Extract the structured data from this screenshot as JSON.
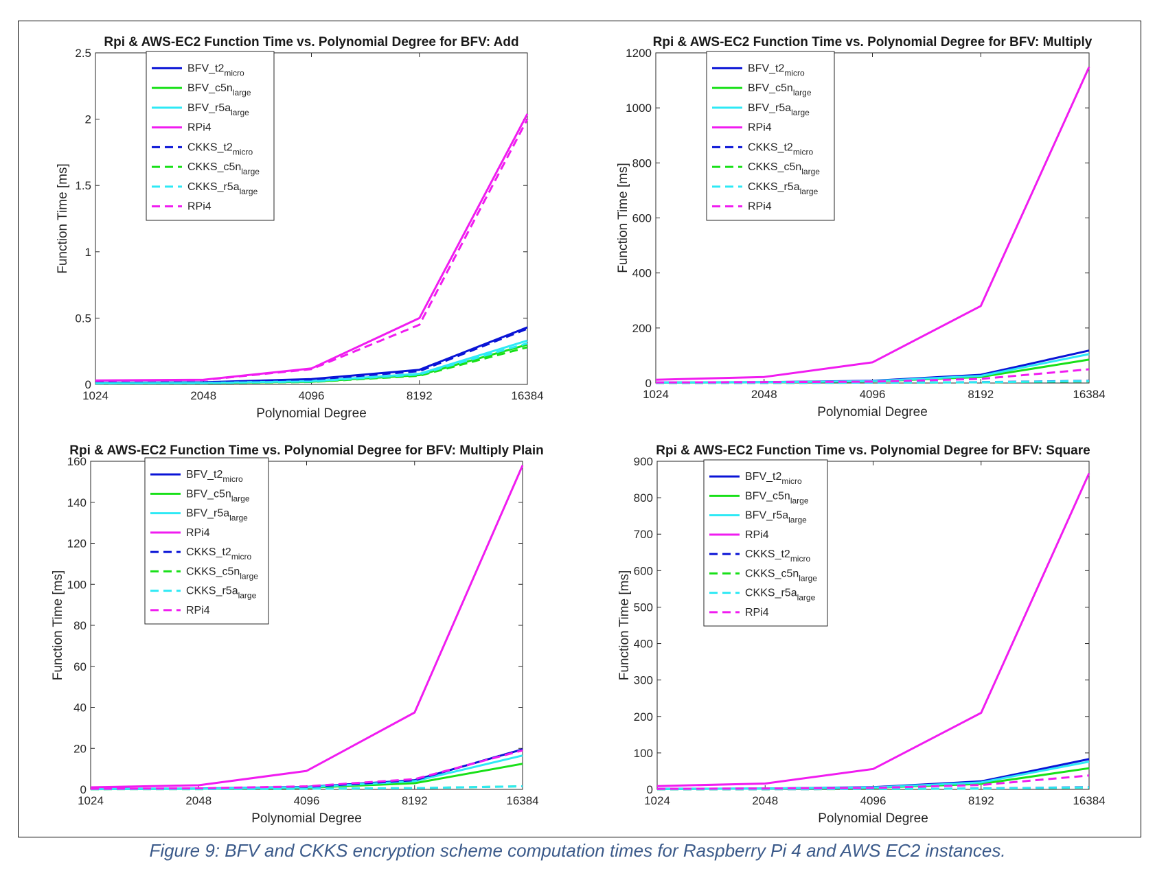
{
  "caption": "Figure 9: BFV and CKKS encryption scheme computation times for Raspberry Pi 4 and AWS EC2 instances.",
  "colors": {
    "t2_micro": "#0a14d6",
    "c5n_large": "#18e018",
    "r5a_large": "#2ee9f5",
    "rpi4": "#f01cf0"
  },
  "legend_entries": [
    {
      "prefix": "BFV_",
      "base": "t2",
      "sub": "micro",
      "color": "t2_micro",
      "dash": false
    },
    {
      "prefix": "BFV_",
      "base": "c5n",
      "sub": "large",
      "color": "c5n_large",
      "dash": false
    },
    {
      "prefix": "BFV_",
      "base": "r5a",
      "sub": "large",
      "color": "r5a_large",
      "dash": false
    },
    {
      "prefix": "",
      "base": "RPi4",
      "sub": "",
      "color": "rpi4",
      "dash": false
    },
    {
      "prefix": "CKKS_",
      "base": "t2",
      "sub": "micro",
      "color": "t2_micro",
      "dash": true
    },
    {
      "prefix": "CKKS_",
      "base": "c5n",
      "sub": "large",
      "color": "c5n_large",
      "dash": true
    },
    {
      "prefix": "CKKS_",
      "base": "r5a",
      "sub": "large",
      "color": "r5a_large",
      "dash": true
    },
    {
      "prefix": "",
      "base": "RPi4",
      "sub": "",
      "color": "rpi4",
      "dash": true
    }
  ],
  "chart_data": [
    {
      "type": "line",
      "title": "Rpi & AWS-EC2 Function Time vs. Polynomial Degree for BFV: Add",
      "xlabel": "Polynomial Degree",
      "ylabel": "Function Time [ms]",
      "categories": [
        "1024",
        "2048",
        "4096",
        "8192",
        "16384"
      ],
      "ylim": [
        0,
        2.5
      ],
      "yticks": [
        0,
        0.5,
        1,
        1.5,
        2,
        2.5
      ],
      "ytick_labels": [
        "0",
        "0.5",
        "1",
        "1.5",
        "2",
        "2.5"
      ],
      "legend": "top-left",
      "series": [
        {
          "values": [
            0.012,
            0.016,
            0.04,
            0.11,
            0.43
          ]
        },
        {
          "values": [
            0.008,
            0.01,
            0.02,
            0.07,
            0.3
          ]
        },
        {
          "values": [
            0.009,
            0.011,
            0.025,
            0.08,
            0.33
          ]
        },
        {
          "values": [
            0.03,
            0.035,
            0.12,
            0.5,
            2.04
          ]
        },
        {
          "values": [
            0.011,
            0.015,
            0.035,
            0.1,
            0.42
          ]
        },
        {
          "values": [
            0.007,
            0.009,
            0.018,
            0.065,
            0.28
          ]
        },
        {
          "values": [
            0.008,
            0.01,
            0.022,
            0.075,
            0.31
          ]
        },
        {
          "values": [
            0.028,
            0.033,
            0.115,
            0.45,
            2.0
          ]
        }
      ]
    },
    {
      "type": "line",
      "title": "Rpi & AWS-EC2 Function Time vs. Polynomial Degree for BFV: Multiply",
      "xlabel": "Polynomial Degree",
      "ylabel": "Function Time [ms]",
      "categories": [
        "1024",
        "2048",
        "4096",
        "8192",
        "16384"
      ],
      "ylim": [
        0,
        1200
      ],
      "yticks": [
        0,
        200,
        400,
        600,
        800,
        1000,
        1200
      ],
      "ytick_labels": [
        "0",
        "200",
        "400",
        "600",
        "800",
        "1000",
        "1200"
      ],
      "legend": "top-left",
      "series": [
        {
          "values": [
            2,
            3,
            8,
            30,
            118
          ]
        },
        {
          "values": [
            1.5,
            2.5,
            6,
            22,
            85
          ]
        },
        {
          "values": [
            1.8,
            2.8,
            7,
            26,
            105
          ]
        },
        {
          "values": [
            12,
            22,
            75,
            280,
            1148
          ]
        },
        {
          "values": [
            0.5,
            0.8,
            1.5,
            3,
            8
          ]
        },
        {
          "values": [
            0.4,
            0.6,
            1.2,
            2.5,
            6
          ]
        },
        {
          "values": [
            0.4,
            0.7,
            1.3,
            2.7,
            7
          ]
        },
        {
          "values": [
            2,
            3,
            5,
            15,
            50
          ]
        }
      ]
    },
    {
      "type": "line",
      "title": "Rpi & AWS-EC2 Function Time vs. Polynomial Degree for BFV: Multiply Plain",
      "xlabel": "Polynomial Degree",
      "ylabel": "Function Time [ms]",
      "categories": [
        "1024",
        "2048",
        "4096",
        "8192",
        "16384"
      ],
      "ylim": [
        0,
        160
      ],
      "yticks": [
        0,
        20,
        40,
        60,
        80,
        100,
        120,
        140,
        160
      ],
      "ytick_labels": [
        "0",
        "20",
        "40",
        "60",
        "80",
        "100",
        "120",
        "140",
        "160"
      ],
      "legend": "top-left",
      "series": [
        {
          "values": [
            0.2,
            0.4,
            1.2,
            4.5,
            19.5
          ]
        },
        {
          "values": [
            0.15,
            0.3,
            0.8,
            3,
            12.5
          ]
        },
        {
          "values": [
            0.18,
            0.35,
            1.0,
            4,
            16.5
          ]
        },
        {
          "values": [
            1,
            2,
            9,
            37.5,
            158
          ]
        },
        {
          "values": [
            0.2,
            0.4,
            1.2,
            4.5,
            19.5
          ]
        },
        {
          "values": [
            0.1,
            0.15,
            0.3,
            0.6,
            1.5
          ]
        },
        {
          "values": [
            0.1,
            0.15,
            0.3,
            0.6,
            1.5
          ]
        },
        {
          "values": [
            0.3,
            0.5,
            1.5,
            5,
            19
          ]
        }
      ]
    },
    {
      "type": "line",
      "title": "Rpi & AWS-EC2 Function Time vs. Polynomial Degree for BFV: Square",
      "xlabel": "Polynomial Degree",
      "ylabel": "Function Time [ms]",
      "categories": [
        "1024",
        "2048",
        "4096",
        "8192",
        "16384"
      ],
      "ylim": [
        0,
        900
      ],
      "yticks": [
        0,
        100,
        200,
        300,
        400,
        500,
        600,
        700,
        800,
        900
      ],
      "ytick_labels": [
        "0",
        "100",
        "200",
        "300",
        "400",
        "500",
        "600",
        "700",
        "800",
        "900"
      ],
      "legend": "top-left",
      "series": [
        {
          "values": [
            1.5,
            2.5,
            6,
            22,
            83
          ]
        },
        {
          "values": [
            1,
            2,
            4.5,
            15,
            58
          ]
        },
        {
          "values": [
            1.2,
            2.2,
            5.2,
            19,
            76
          ]
        },
        {
          "values": [
            9,
            16,
            56,
            210,
            867
          ]
        },
        {
          "values": [
            0.4,
            0.6,
            1.2,
            2.5,
            6
          ]
        },
        {
          "values": [
            0.3,
            0.5,
            1.0,
            2,
            5
          ]
        },
        {
          "values": [
            0.35,
            0.55,
            1.1,
            2.2,
            5.5
          ]
        },
        {
          "values": [
            1.5,
            2.5,
            4,
            12,
            38
          ]
        }
      ]
    }
  ]
}
